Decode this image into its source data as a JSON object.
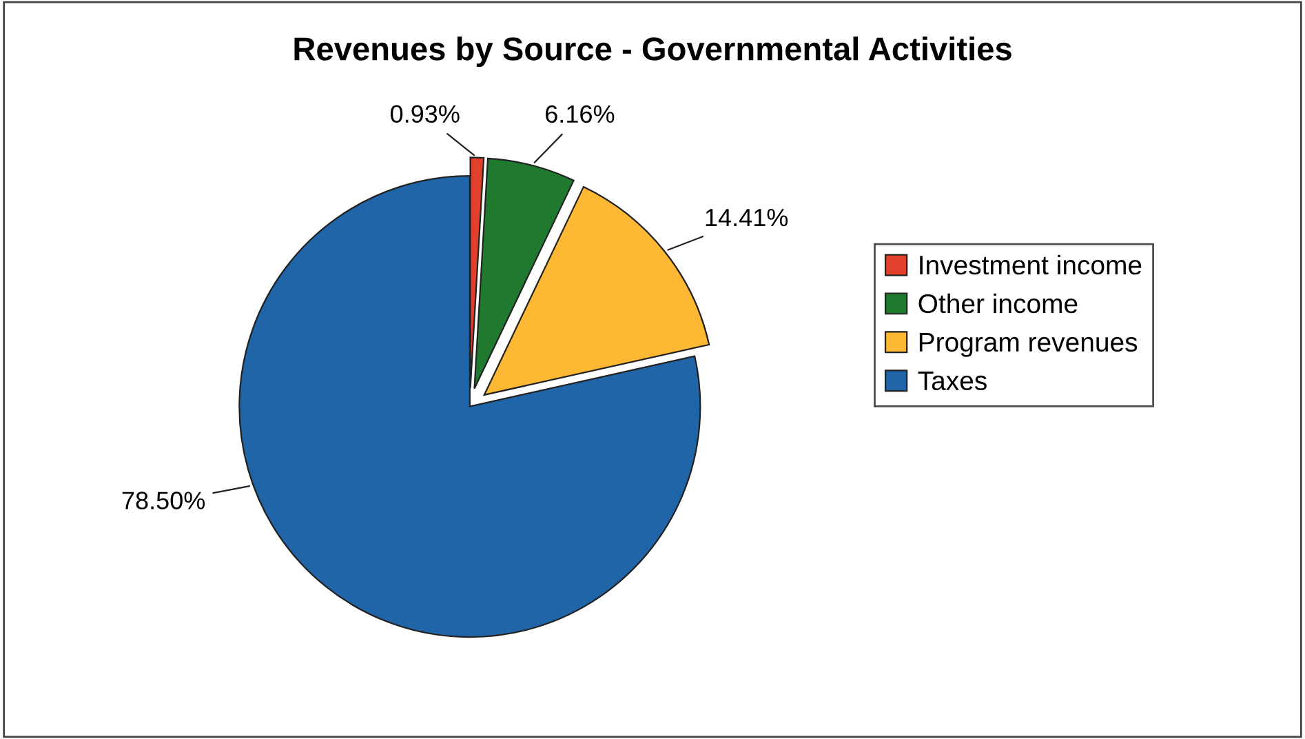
{
  "chart_data": {
    "type": "pie",
    "title": "Revenues by Source - Governmental Activities",
    "categories": [
      "Investment income",
      "Other income",
      "Program revenues",
      "Taxes"
    ],
    "values": [
      0.93,
      6.16,
      14.41,
      78.5
    ],
    "colors": [
      "#e0402c",
      "#1f7a30",
      "#ffb833",
      "#1f65a8"
    ],
    "value_labels": [
      "0.93%",
      "6.16%",
      "14.41%",
      "78.50%"
    ],
    "legend": "right"
  }
}
